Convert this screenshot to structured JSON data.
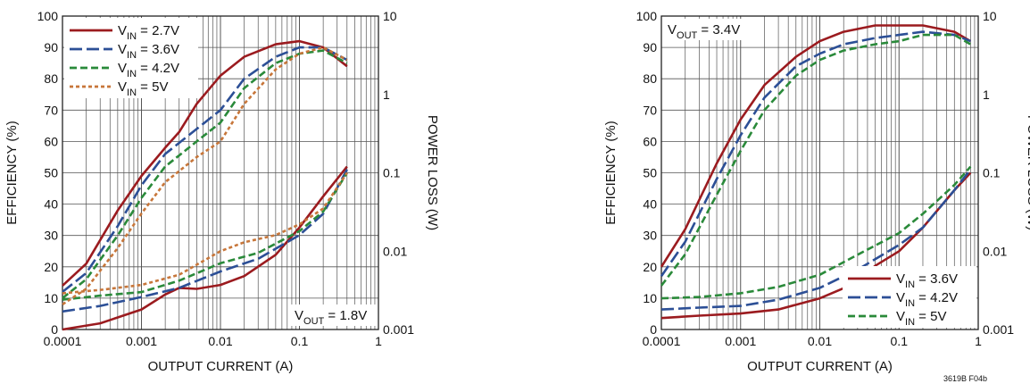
{
  "figure_id": "3619B F04b",
  "chart_data": [
    {
      "type": "line",
      "xlabel": "OUTPUT CURRENT (A)",
      "ylabel": "EFFICIENCY (%)",
      "y2label": "POWER LOSS (W)",
      "xscale": "log",
      "xlim": [
        0.0001,
        1
      ],
      "ylim": [
        0,
        100
      ],
      "y2scale": "log",
      "y2lim": [
        0.001,
        10
      ],
      "x_ticks": [
        "0.0001",
        "0.001",
        "0.01",
        "0.1",
        "1"
      ],
      "y_ticks": [
        "0",
        "10",
        "20",
        "30",
        "40",
        "50",
        "60",
        "70",
        "80",
        "90",
        "100"
      ],
      "y2_ticks": [
        "0.001",
        "0.01",
        "0.1",
        "1",
        "10"
      ],
      "grid": true,
      "legend_position": "top-left",
      "annotation": {
        "text": "V",
        "sub": "OUT",
        "rest": " = 1.8V"
      },
      "series": [
        {
          "name": "VIN = 2.7V",
          "label_main": "V",
          "label_sub": "IN",
          "label_rest": " = 2.7V",
          "color": "#9b1b1f",
          "dash": "solid",
          "efficiency": [
            [
              0.0001,
              14
            ],
            [
              0.0002,
              21
            ],
            [
              0.0005,
              38
            ],
            [
              0.001,
              49
            ],
            [
              0.002,
              58
            ],
            [
              0.003,
              63
            ],
            [
              0.005,
              72
            ],
            [
              0.01,
              81
            ],
            [
              0.02,
              87
            ],
            [
              0.05,
              91
            ],
            [
              0.1,
              92
            ],
            [
              0.2,
              90
            ],
            [
              0.4,
              84
            ]
          ],
          "power_loss": [
            [
              0.0001,
              0.001
            ],
            [
              0.0003,
              0.0012
            ],
            [
              0.001,
              0.0018
            ],
            [
              0.002,
              0.0028
            ],
            [
              0.003,
              0.0034
            ],
            [
              0.005,
              0.0033
            ],
            [
              0.01,
              0.0037
            ],
            [
              0.02,
              0.0048
            ],
            [
              0.05,
              0.009
            ],
            [
              0.1,
              0.02
            ],
            [
              0.2,
              0.05
            ],
            [
              0.4,
              0.12
            ]
          ]
        },
        {
          "name": "VIN = 3.6V",
          "label_main": "V",
          "label_sub": "IN",
          "label_rest": " = 3.6V",
          "color": "#2c4f96",
          "dash": "long",
          "efficiency": [
            [
              0.0001,
              12
            ],
            [
              0.0002,
              18
            ],
            [
              0.0005,
              33
            ],
            [
              0.001,
              46
            ],
            [
              0.002,
              56
            ],
            [
              0.005,
              64
            ],
            [
              0.01,
              70
            ],
            [
              0.02,
              80
            ],
            [
              0.05,
              87
            ],
            [
              0.1,
              90
            ],
            [
              0.2,
              90
            ],
            [
              0.4,
              86
            ]
          ],
          "power_loss": [
            [
              0.0001,
              0.0017
            ],
            [
              0.0003,
              0.002
            ],
            [
              0.001,
              0.0026
            ],
            [
              0.003,
              0.0034
            ],
            [
              0.01,
              0.0055
            ],
            [
              0.03,
              0.008
            ],
            [
              0.1,
              0.016
            ],
            [
              0.2,
              0.03
            ],
            [
              0.4,
              0.11
            ]
          ]
        },
        {
          "name": "VIN = 4.2V",
          "label_main": "V",
          "label_sub": "IN",
          "label_rest": " = 4.2V",
          "color": "#2a8a3a",
          "dash": "medium",
          "efficiency": [
            [
              0.0001,
              10
            ],
            [
              0.0002,
              16
            ],
            [
              0.0005,
              30
            ],
            [
              0.001,
              42
            ],
            [
              0.002,
              52
            ],
            [
              0.005,
              60
            ],
            [
              0.01,
              66
            ],
            [
              0.02,
              77
            ],
            [
              0.05,
              85
            ],
            [
              0.1,
              88
            ],
            [
              0.2,
              89
            ],
            [
              0.4,
              85
            ]
          ],
          "power_loss": [
            [
              0.0001,
              0.0024
            ],
            [
              0.0003,
              0.0027
            ],
            [
              0.001,
              0.003
            ],
            [
              0.003,
              0.0042
            ],
            [
              0.01,
              0.007
            ],
            [
              0.03,
              0.0095
            ],
            [
              0.1,
              0.018
            ],
            [
              0.2,
              0.032
            ],
            [
              0.4,
              0.1
            ]
          ]
        },
        {
          "name": "VIN = 5V",
          "label_main": "V",
          "label_sub": "IN",
          "label_rest": " = 5V",
          "color": "#c7763a",
          "dash": "dotted",
          "efficiency": [
            [
              0.0001,
              8
            ],
            [
              0.0002,
              13
            ],
            [
              0.0005,
              26
            ],
            [
              0.001,
              37
            ],
            [
              0.002,
              47
            ],
            [
              0.005,
              55
            ],
            [
              0.01,
              60
            ],
            [
              0.02,
              72
            ],
            [
              0.05,
              83
            ],
            [
              0.1,
              88
            ],
            [
              0.2,
              90
            ],
            [
              0.4,
              86
            ]
          ],
          "power_loss": [
            [
              0.0001,
              0.0029
            ],
            [
              0.0003,
              0.0032
            ],
            [
              0.001,
              0.0037
            ],
            [
              0.003,
              0.005
            ],
            [
              0.01,
              0.01
            ],
            [
              0.02,
              0.013
            ],
            [
              0.05,
              0.016
            ],
            [
              0.1,
              0.022
            ],
            [
              0.2,
              0.035
            ],
            [
              0.4,
              0.1
            ]
          ]
        }
      ]
    },
    {
      "type": "line",
      "xlabel": "OUTPUT CURRENT (A)",
      "ylabel": "EFFICIENCY (%)",
      "y2label": "POWER LOSS (W)",
      "xscale": "log",
      "xlim": [
        0.0001,
        1
      ],
      "ylim": [
        0,
        100
      ],
      "y2scale": "log",
      "y2lim": [
        0.001,
        10
      ],
      "x_ticks": [
        "0.0001",
        "0.001",
        "0.01",
        "0.1",
        "1"
      ],
      "y_ticks": [
        "0",
        "10",
        "20",
        "30",
        "40",
        "50",
        "60",
        "70",
        "80",
        "90",
        "100"
      ],
      "y2_ticks": [
        "0.001",
        "0.01",
        "0.1",
        "1",
        "10"
      ],
      "grid": true,
      "legend_position": "bottom-right",
      "annotation": {
        "text": "V",
        "sub": "OUT",
        "rest": " = 3.4V"
      },
      "series": [
        {
          "name": "VIN = 3.6V",
          "label_main": "V",
          "label_sub": "IN",
          "label_rest": " = 3.6V",
          "color": "#9b1b1f",
          "dash": "solid",
          "efficiency": [
            [
              0.0001,
              20
            ],
            [
              0.0002,
              32
            ],
            [
              0.0005,
              53
            ],
            [
              0.001,
              67
            ],
            [
              0.002,
              78
            ],
            [
              0.005,
              87
            ],
            [
              0.01,
              92
            ],
            [
              0.02,
              95
            ],
            [
              0.05,
              97
            ],
            [
              0.1,
              97
            ],
            [
              0.2,
              97
            ],
            [
              0.5,
              95
            ],
            [
              0.8,
              92
            ]
          ],
          "power_loss": [
            [
              0.0001,
              0.0014
            ],
            [
              0.0003,
              0.0015
            ],
            [
              0.001,
              0.0016
            ],
            [
              0.003,
              0.0018
            ],
            [
              0.01,
              0.0025
            ],
            [
              0.03,
              0.004
            ],
            [
              0.05,
              0.0065
            ],
            [
              0.1,
              0.01
            ],
            [
              0.2,
              0.02
            ],
            [
              0.5,
              0.06
            ],
            [
              0.8,
              0.1
            ]
          ]
        },
        {
          "name": "VIN = 4.2V",
          "label_main": "V",
          "label_sub": "IN",
          "label_rest": " = 4.2V",
          "color": "#2c4f96",
          "dash": "long",
          "efficiency": [
            [
              0.0001,
              17
            ],
            [
              0.0002,
              28
            ],
            [
              0.0005,
              48
            ],
            [
              0.001,
              62
            ],
            [
              0.002,
              74
            ],
            [
              0.005,
              84
            ],
            [
              0.01,
              88
            ],
            [
              0.02,
              91
            ],
            [
              0.05,
              93
            ],
            [
              0.1,
              94
            ],
            [
              0.2,
              95
            ],
            [
              0.5,
              94
            ],
            [
              0.8,
              92
            ]
          ],
          "power_loss": [
            [
              0.0001,
              0.0018
            ],
            [
              0.0003,
              0.0019
            ],
            [
              0.001,
              0.002
            ],
            [
              0.003,
              0.0024
            ],
            [
              0.01,
              0.0034
            ],
            [
              0.03,
              0.0058
            ],
            [
              0.1,
              0.012
            ],
            [
              0.2,
              0.02
            ],
            [
              0.5,
              0.06
            ],
            [
              0.8,
              0.11
            ]
          ]
        },
        {
          "name": "VIN = 5V",
          "label_main": "V",
          "label_sub": "IN",
          "label_rest": " = 5V",
          "color": "#2a8a3a",
          "dash": "medium",
          "efficiency": [
            [
              0.0001,
              14
            ],
            [
              0.0002,
              24
            ],
            [
              0.0005,
              43
            ],
            [
              0.001,
              57
            ],
            [
              0.002,
              70
            ],
            [
              0.005,
              81
            ],
            [
              0.01,
              86
            ],
            [
              0.02,
              89
            ],
            [
              0.05,
              91
            ],
            [
              0.1,
              92
            ],
            [
              0.2,
              94
            ],
            [
              0.5,
              94
            ],
            [
              0.8,
              91
            ]
          ],
          "power_loss": [
            [
              0.0001,
              0.0025
            ],
            [
              0.0003,
              0.0026
            ],
            [
              0.001,
              0.0029
            ],
            [
              0.003,
              0.0035
            ],
            [
              0.01,
              0.005
            ],
            [
              0.03,
              0.009
            ],
            [
              0.1,
              0.017
            ],
            [
              0.2,
              0.03
            ],
            [
              0.5,
              0.07
            ],
            [
              0.8,
              0.12
            ]
          ]
        }
      ]
    }
  ]
}
